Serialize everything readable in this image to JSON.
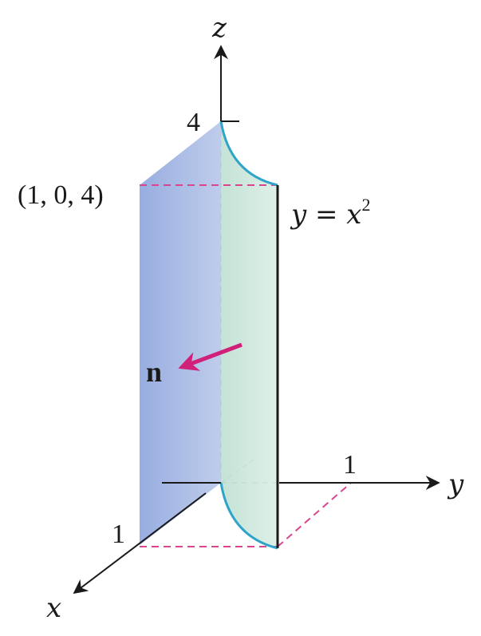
{
  "axes": {
    "x_label": "x",
    "y_label": "y",
    "z_label": "z"
  },
  "ticks": {
    "z_top": "4",
    "y_one": "1",
    "x_one": "1"
  },
  "labels": {
    "corner_point": "(1, 0, 4)",
    "curve_eq_lhs": "y = x",
    "curve_eq_exp": "2",
    "normal_vector": "n"
  },
  "colors": {
    "front_face": "#9aaede",
    "curved_face": "#cfe8dc",
    "curve_edge": "#2fa4c8",
    "dashed_edge": "#d9468c",
    "normal_arrow": "#d0207a",
    "axis": "#1a1a1a"
  }
}
